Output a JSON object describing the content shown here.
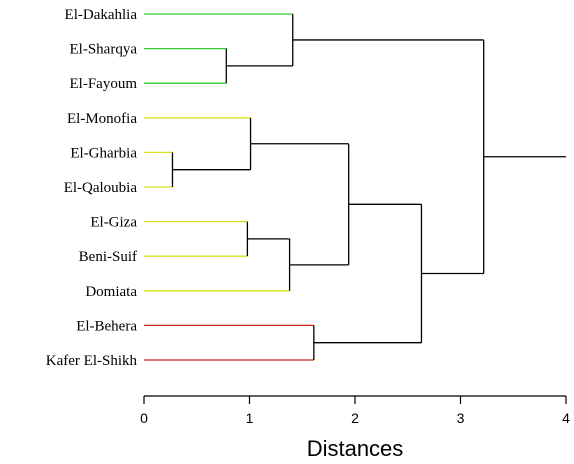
{
  "chart_data": {
    "type": "dendrogram",
    "xlabel": "Distances",
    "xlim": [
      0,
      4
    ],
    "x_ticks": [
      "0",
      "1",
      "2",
      "3",
      "4"
    ],
    "leaves": [
      {
        "name": "El-Dakahlia",
        "cluster_color": "#33cc33"
      },
      {
        "name": "El-Sharqya",
        "cluster_color": "#33cc33"
      },
      {
        "name": "El-Fayoum",
        "cluster_color": "#33cc33"
      },
      {
        "name": "El-Monofia",
        "cluster_color": "#d8e020"
      },
      {
        "name": "El-Gharbia",
        "cluster_color": "#d8e020"
      },
      {
        "name": "El-Qaloubia",
        "cluster_color": "#d8e020"
      },
      {
        "name": "El-Giza",
        "cluster_color": "#d8e020"
      },
      {
        "name": "Beni-Suif",
        "cluster_color": "#d8e020"
      },
      {
        "name": "Domiata",
        "cluster_color": "#d8e020"
      },
      {
        "name": "El-Behera",
        "cluster_color": "#cc2020"
      },
      {
        "name": "Kafer El-Shikh",
        "cluster_color": "#cc2020"
      }
    ],
    "merges": [
      {
        "id": "m1",
        "left": "El-Gharbia",
        "right": "El-Qaloubia",
        "height": 0.27
      },
      {
        "id": "m2",
        "left": "El-Giza",
        "right": "Beni-Suif",
        "height": 0.98
      },
      {
        "id": "m3",
        "left": "El-Sharqya",
        "right": "El-Fayoum",
        "height": 0.78
      },
      {
        "id": "m4",
        "left": "El-Monofia",
        "right": "m1",
        "height": 1.01
      },
      {
        "id": "m5",
        "left": "m2",
        "right": "Domiata",
        "height": 1.38
      },
      {
        "id": "m6",
        "left": "El-Dakahlia",
        "right": "m3",
        "height": 1.41
      },
      {
        "id": "m7",
        "left": "El-Behera",
        "right": "Kafer El-Shikh",
        "height": 1.61
      },
      {
        "id": "m8",
        "left": "m4",
        "right": "m5",
        "height": 1.94
      },
      {
        "id": "m9",
        "left": "m8",
        "right": "m7",
        "height": 2.63
      },
      {
        "id": "m10",
        "left": "m6",
        "right": "m9",
        "height": 3.22
      }
    ],
    "root_tail_to": 4.0,
    "link_color": "#000000"
  }
}
